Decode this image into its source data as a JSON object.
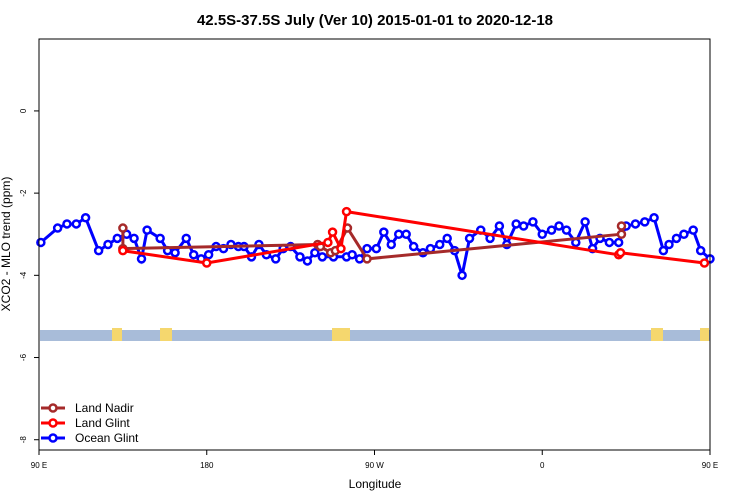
{
  "chart_data": {
    "type": "line",
    "title": "42.5S-37.5S July (Ver 10)   2015-01-01 to 2020-12-18",
    "xlabel": "Longitude",
    "ylabel": "XCO2 - MLO trend (ppm)",
    "xlim": [
      90,
      450
    ],
    "ylim": [
      -8.25,
      1.75
    ],
    "x_ticks": [
      {
        "value": 90,
        "label": "90 E"
      },
      {
        "value": 180,
        "label": "180"
      },
      {
        "value": 270,
        "label": "90 W"
      },
      {
        "value": 360,
        "label": "0"
      },
      {
        "value": 450,
        "label": "90 E"
      },
      {
        "value": 540,
        "label": "180"
      }
    ],
    "y_ticks": [
      {
        "value": 0,
        "label": "0"
      },
      {
        "value": -2,
        "label": "-2"
      },
      {
        "value": -4,
        "label": "-4"
      },
      {
        "value": -6,
        "label": "-6"
      },
      {
        "value": -8,
        "label": "-8"
      }
    ],
    "legend_position": "bottom-left",
    "series": [
      {
        "name": "Land Nadir",
        "color": "#a52a2a",
        "x": [
          135,
          135,
          239.5,
          241,
          246.5,
          249,
          255.5,
          266,
          402.5,
          402.5
        ],
        "y": [
          -2.85,
          -3.35,
          -3.25,
          -3.3,
          -3.45,
          -3.4,
          -2.85,
          -3.6,
          -3.0,
          -2.8
        ]
      },
      {
        "name": "Land Glint",
        "color": "#ff0000",
        "x": [
          135,
          180,
          245,
          247.5,
          252,
          255,
          401,
          402,
          447
        ],
        "y": [
          -3.4,
          -3.7,
          -3.2,
          -2.95,
          -3.35,
          -2.45,
          -3.5,
          -3.45,
          -3.7
        ]
      },
      {
        "name": "Ocean Glint",
        "color": "#0000ff",
        "x": [
          91,
          100,
          105,
          110,
          115,
          122,
          127,
          132,
          137,
          141,
          145,
          148,
          155,
          159,
          163,
          169,
          173,
          177,
          181,
          185,
          189,
          193,
          197,
          200,
          204,
          208,
          212,
          217,
          221,
          225,
          230,
          234,
          238,
          242,
          248,
          255,
          258,
          262,
          266,
          271,
          275,
          279,
          283,
          287,
          291,
          296,
          300,
          305,
          309,
          313,
          317,
          321,
          327,
          332,
          337,
          341,
          346,
          350,
          355,
          360,
          365,
          369,
          373,
          378,
          383,
          387,
          391,
          396,
          401,
          405,
          410,
          415,
          420,
          425,
          428,
          432,
          436,
          441,
          445,
          450
        ],
        "y": [
          -3.2,
          -2.85,
          -2.75,
          -2.75,
          -2.6,
          -3.4,
          -3.25,
          -3.1,
          -3.0,
          -3.1,
          -3.6,
          -2.9,
          -3.1,
          -3.4,
          -3.45,
          -3.1,
          -3.5,
          -3.6,
          -3.5,
          -3.3,
          -3.35,
          -3.25,
          -3.3,
          -3.3,
          -3.55,
          -3.25,
          -3.5,
          -3.6,
          -3.35,
          -3.3,
          -3.55,
          -3.65,
          -3.45,
          -3.55,
          -3.55,
          -3.55,
          -3.5,
          -3.6,
          -3.35,
          -3.35,
          -2.95,
          -3.25,
          -3.0,
          -3.0,
          -3.3,
          -3.45,
          -3.35,
          -3.25,
          -3.1,
          -3.4,
          -4.0,
          -3.1,
          -2.9,
          -3.1,
          -2.8,
          -3.25,
          -2.75,
          -2.8,
          -2.7,
          -3.0,
          -2.9,
          -2.8,
          -2.9,
          -3.2,
          -2.7,
          -3.35,
          -3.1,
          -3.2,
          -3.2,
          -2.8,
          -2.75,
          -2.7,
          -2.6,
          -3.4,
          -3.25,
          -3.1,
          -3.0,
          -2.9,
          -3.4,
          -3.6
        ]
      }
    ]
  }
}
